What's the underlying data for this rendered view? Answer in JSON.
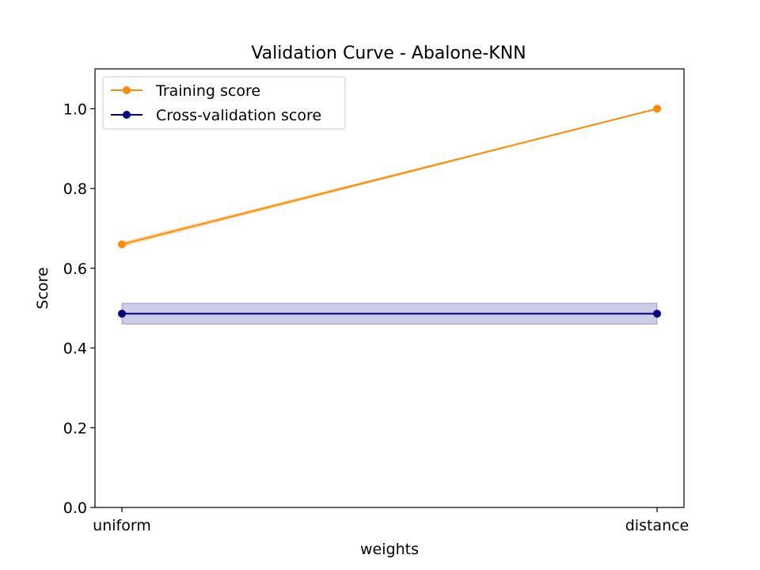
{
  "chart_data": {
    "type": "line",
    "title": "Validation Curve - Abalone-KNN",
    "xlabel": "weights",
    "ylabel": "Score",
    "categories": [
      "uniform",
      "distance"
    ],
    "ylim": [
      0.0,
      1.1
    ],
    "yticks": [
      0.0,
      0.2,
      0.4,
      0.6,
      0.8,
      1.0
    ],
    "ytick_labels": [
      "0.0",
      "0.2",
      "0.4",
      "0.6",
      "0.8",
      "1.0"
    ],
    "grid": false,
    "legend_position": "upper-left",
    "series": [
      {
        "name": "Training score",
        "color": "#ff8c00",
        "values": [
          0.66,
          1.0
        ],
        "band_lower": [
          0.655,
          1.0
        ],
        "band_upper": [
          0.665,
          1.0
        ]
      },
      {
        "name": "Cross-validation score",
        "color": "#000080",
        "values": [
          0.486,
          0.486
        ],
        "band_lower": [
          0.46,
          0.46
        ],
        "band_upper": [
          0.512,
          0.512
        ]
      }
    ]
  }
}
